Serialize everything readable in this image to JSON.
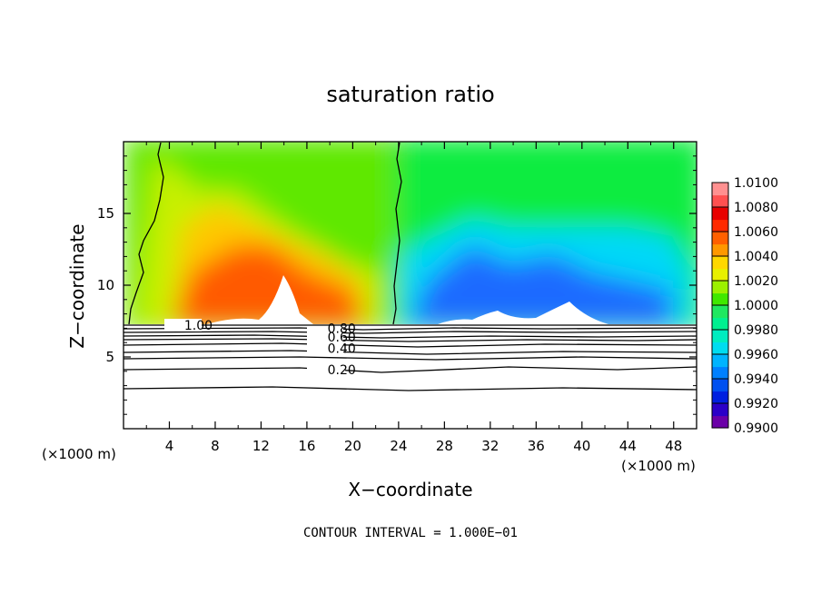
{
  "chart_data": {
    "type": "heatmap",
    "title": "saturation ratio",
    "xlabel": "X−coordinate",
    "ylabel": "Z−coordinate",
    "x_unit_label": "(×1000 m)",
    "xlim": [
      0,
      50
    ],
    "ylim": [
      0,
      20
    ],
    "x_ticks": [
      4,
      8,
      12,
      16,
      20,
      24,
      28,
      32,
      36,
      40,
      44,
      48
    ],
    "y_ticks": [
      5,
      10,
      15
    ],
    "footer": "CONTOUR INTERVAL = 1.000E−01",
    "colorbar": {
      "min": 0.99,
      "max": 1.01,
      "tick_labels": [
        "1.0100",
        "1.0080",
        "1.0060",
        "1.0040",
        "1.0020",
        "1.0000",
        "0.9980",
        "0.9960",
        "0.9940",
        "0.9920",
        "0.9900"
      ],
      "colors": [
        "#6b00a8",
        "#2b00c8",
        "#0020e0",
        "#0050f0",
        "#0080ff",
        "#00b4ff",
        "#00dcf0",
        "#00ecc0",
        "#00f090",
        "#20e860",
        "#40e800",
        "#9cf000",
        "#e8f000",
        "#ffd800",
        "#ff9800",
        "#ff6000",
        "#ff2a00",
        "#e80000",
        "#ff5050",
        "#ff9090"
      ]
    },
    "field_anchors": [
      {
        "x": 1,
        "z": 17,
        "value": 0.9999
      },
      {
        "x": 9,
        "z": 16,
        "value": 1.003
      },
      {
        "x": 10,
        "z": 12,
        "value": 1.006
      },
      {
        "x": 14,
        "z": 9,
        "value": 1.009
      },
      {
        "x": 19,
        "z": 8,
        "value": 1.007
      },
      {
        "x": 28,
        "z": 9,
        "value": 0.994
      },
      {
        "x": 32,
        "z": 8,
        "value": 0.992
      },
      {
        "x": 39,
        "z": 9,
        "value": 0.991
      },
      {
        "x": 46,
        "z": 10,
        "value": 0.997
      }
    ],
    "contour_lines": [
      {
        "label": "1.00",
        "label_x": 5.3,
        "label_z": 7.2
      },
      {
        "label": "0.80",
        "label_x": 17.8,
        "label_z": 7.0
      },
      {
        "label": "0.60",
        "label_x": 17.8,
        "label_z": 6.4
      },
      {
        "label": "0.40",
        "label_x": 17.8,
        "label_z": 5.6
      },
      {
        "label": "0.20",
        "label_x": 17.8,
        "label_z": 4.1
      }
    ]
  }
}
